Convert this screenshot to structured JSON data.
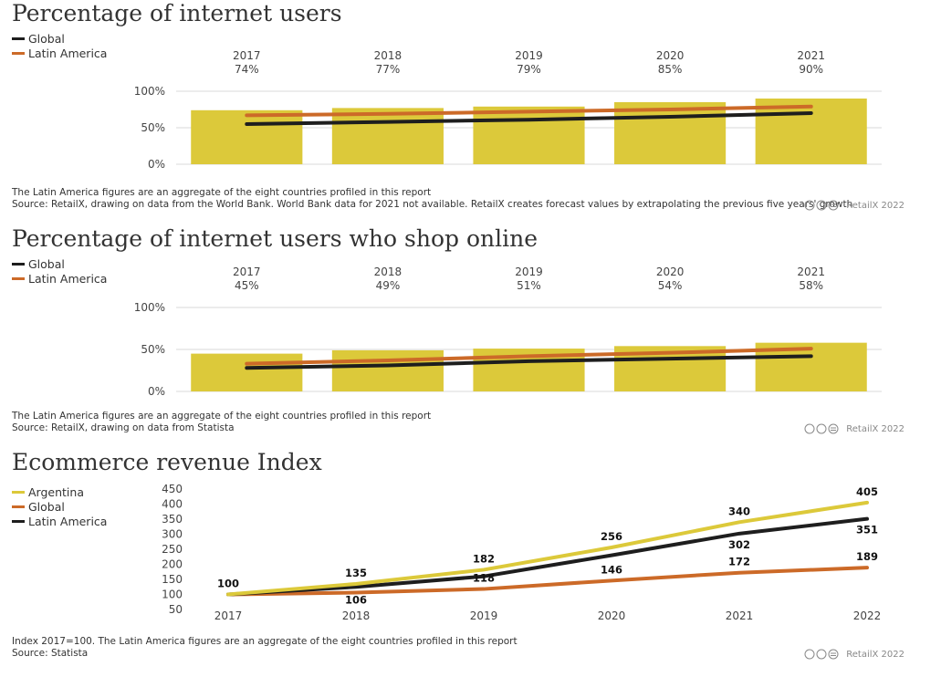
{
  "charts": [
    {
      "title": "Percentage of internet users",
      "legend": [
        {
          "label": "Global",
          "color": "#1e1e1e"
        },
        {
          "label": "Latin America",
          "color": "#cc6a28"
        }
      ],
      "notes": [
        "The Latin America figures are an aggregate of the eight countries profiled in this report",
        "Source: RetailX, drawing on data from the World Bank. World Bank data for 2021 not available. RetailX creates forecast values by extrapolating the previous five years' growth"
      ],
      "credit": "RetailX 2022"
    },
    {
      "title": "Percentage of internet users who shop online",
      "legend": [
        {
          "label": "Global",
          "color": "#1e1e1e"
        },
        {
          "label": "Latin America",
          "color": "#cc6a28"
        }
      ],
      "notes": [
        "The Latin America figures are an aggregate of the eight countries profiled in this report",
        "Source: RetailX, drawing on data from Statista"
      ],
      "credit": "RetailX 2022"
    },
    {
      "title": "Ecommerce revenue Index",
      "legend": [
        {
          "label": "Argentina",
          "color": "#dcc93a"
        },
        {
          "label": "Global",
          "color": "#cc6a28"
        },
        {
          "label": "Latin America",
          "color": "#1e1e1e"
        }
      ],
      "notes": [
        "Index 2017=100. The Latin America figures are an aggregate of the eight countries profiled in this report",
        "Source: Statista"
      ],
      "credit": "RetailX 2022"
    }
  ],
  "chart_data": [
    {
      "type": "bar",
      "title": "Percentage of internet users",
      "categories": [
        "2017",
        "2018",
        "2019",
        "2020",
        "2021"
      ],
      "value_labels": [
        "74%",
        "77%",
        "79%",
        "85%",
        "90%"
      ],
      "series": [
        {
          "name": "Argentina",
          "kind": "bar",
          "color": "#dcc93a",
          "values": [
            74,
            77,
            79,
            85,
            90
          ]
        },
        {
          "name": "Global",
          "kind": "line",
          "color": "#1e1e1e",
          "values": [
            55,
            58,
            61,
            65,
            70
          ]
        },
        {
          "name": "Latin America",
          "kind": "line",
          "color": "#cc6a28",
          "values": [
            67,
            69,
            72,
            75,
            79
          ]
        }
      ],
      "yticks": [
        0,
        50,
        100
      ],
      "ytick_labels": [
        "0%",
        "50%",
        "100%"
      ],
      "ylim": [
        0,
        100
      ],
      "grid": true,
      "legend_position": "top-left"
    },
    {
      "type": "bar",
      "title": "Percentage of internet users who shop online",
      "categories": [
        "2017",
        "2018",
        "2019",
        "2020",
        "2021"
      ],
      "value_labels": [
        "45%",
        "49%",
        "51%",
        "54%",
        "58%"
      ],
      "series": [
        {
          "name": "Argentina",
          "kind": "bar",
          "color": "#dcc93a",
          "values": [
            45,
            49,
            51,
            54,
            58
          ]
        },
        {
          "name": "Global",
          "kind": "line",
          "color": "#1e1e1e",
          "values": [
            28,
            31,
            36,
            39,
            42
          ]
        },
        {
          "name": "Latin America",
          "kind": "line",
          "color": "#cc6a28",
          "values": [
            33,
            37,
            42,
            46,
            51
          ]
        }
      ],
      "yticks": [
        0,
        50,
        100
      ],
      "ytick_labels": [
        "0%",
        "50%",
        "100%"
      ],
      "ylim": [
        0,
        100
      ],
      "grid": true,
      "legend_position": "top-left"
    },
    {
      "type": "line",
      "title": "Ecommerce revenue Index",
      "x": [
        "2017",
        "2018",
        "2019",
        "2020",
        "2021",
        "2022"
      ],
      "series": [
        {
          "name": "Argentina",
          "color": "#dcc93a",
          "values": [
            100,
            135,
            182,
            256,
            340,
            405
          ],
          "labels": [
            null,
            "135",
            "182",
            "256",
            "340",
            "405"
          ]
        },
        {
          "name": "Global",
          "color": "#cc6a28",
          "values": [
            100,
            106,
            118,
            146,
            172,
            189
          ],
          "labels": [
            null,
            "106",
            "118",
            "146",
            "172",
            "189"
          ]
        },
        {
          "name": "Latin America",
          "color": "#1e1e1e",
          "values": [
            100,
            125,
            160,
            230,
            302,
            351
          ],
          "labels": [
            "100",
            null,
            null,
            null,
            "302",
            "351"
          ]
        }
      ],
      "yticks": [
        50,
        100,
        150,
        200,
        250,
        300,
        350,
        400,
        450
      ],
      "ylim": [
        50,
        450
      ],
      "grid": false,
      "legend_position": "top-left"
    }
  ]
}
